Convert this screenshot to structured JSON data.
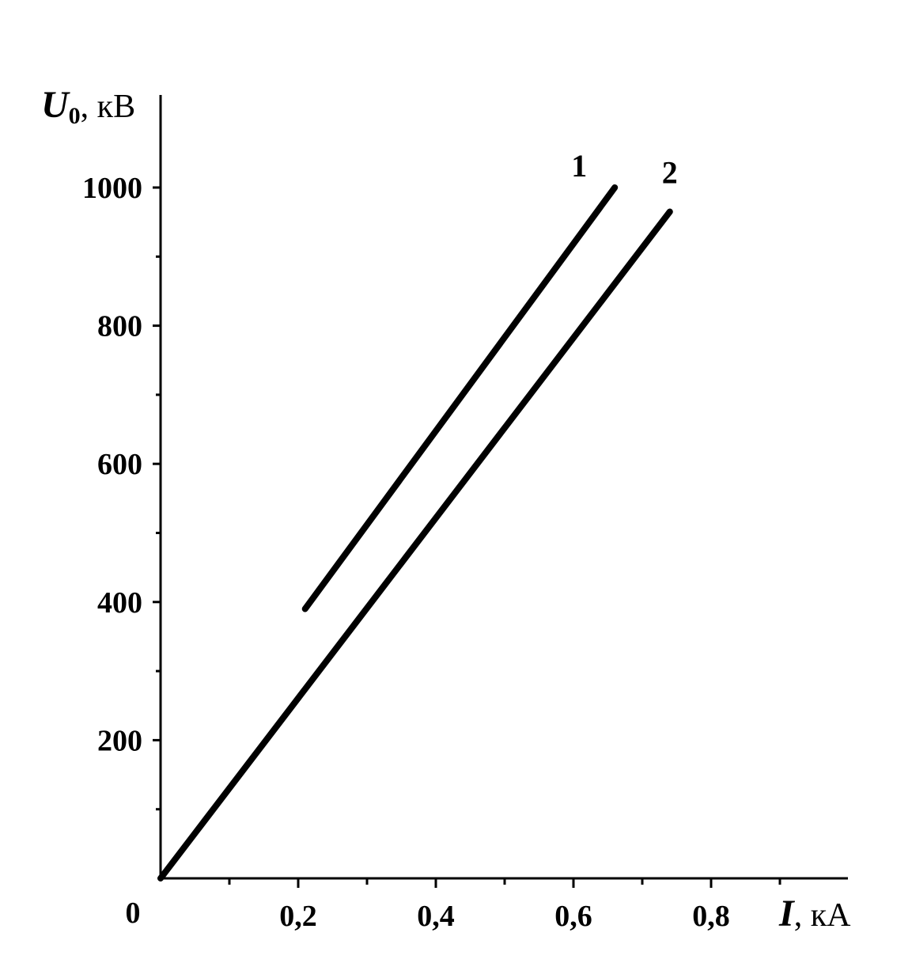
{
  "chart_data": {
    "type": "line",
    "x_axis": {
      "symbol": "I",
      "unit": ", кА",
      "ticks": [
        0.2,
        0.4,
        0.6,
        0.8
      ],
      "tick_labels": [
        "0,2",
        "0,4",
        "0,6",
        "0,8"
      ],
      "minor_ticks": [
        0.1,
        0.3,
        0.5,
        0.7,
        0.9
      ],
      "range": [
        0,
        1.0
      ]
    },
    "y_axis": {
      "symbol": "U",
      "subscript": "0",
      "unit": ", кВ",
      "ticks": [
        200,
        400,
        600,
        800,
        1000
      ],
      "tick_labels": [
        "200",
        "400",
        "600",
        "800",
        "1000"
      ],
      "minor_ticks": [
        100,
        300,
        500,
        700,
        900
      ],
      "range": [
        0,
        1100
      ]
    },
    "origin_label": "0",
    "series": [
      {
        "name": "1",
        "x": [
          0.21,
          0.66
        ],
        "y": [
          390,
          1000
        ]
      },
      {
        "name": "2",
        "x": [
          0.0,
          0.74
        ],
        "y": [
          0,
          965
        ]
      }
    ],
    "grid": false,
    "legend": "none"
  }
}
